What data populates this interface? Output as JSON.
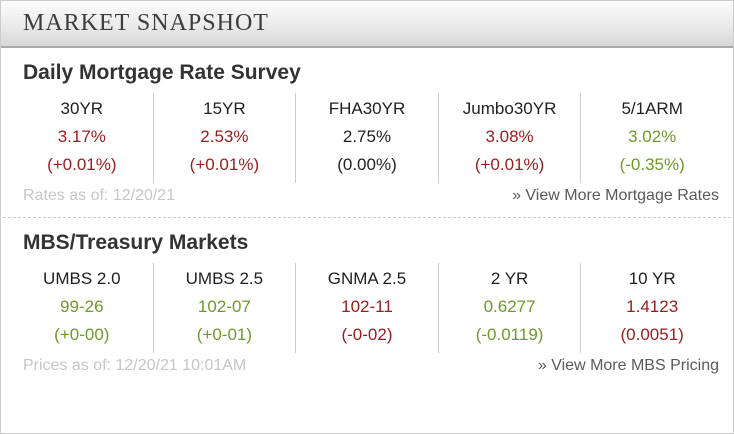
{
  "header": {
    "title": "MARKET SNAPSHOT"
  },
  "colors": {
    "negative": "#9a1c1c",
    "positive": "#70992c",
    "neutral": "#222222"
  },
  "sections": [
    {
      "title": "Daily Mortgage Rate Survey",
      "columns": [
        {
          "label": "30YR",
          "value": "3.17%",
          "change": "(+0.01%)",
          "color": "#9a1c1c"
        },
        {
          "label": "15YR",
          "value": "2.53%",
          "change": "(+0.01%)",
          "color": "#9a1c1c"
        },
        {
          "label": "FHA30YR",
          "value": "2.75%",
          "change": "(0.00%)",
          "color": "#222222"
        },
        {
          "label": "Jumbo30YR",
          "value": "3.08%",
          "change": "(+0.01%)",
          "color": "#9a1c1c"
        },
        {
          "label": "5/1ARM",
          "value": "3.02%",
          "change": "(-0.35%)",
          "color": "#70992c"
        }
      ],
      "footer_note": "Rates as of: 12/20/21",
      "view_more": "» View More Mortgage Rates"
    },
    {
      "title": "MBS/Treasury Markets",
      "columns": [
        {
          "label": "UMBS 2.0",
          "value": "99-26",
          "change": "(+0-00)",
          "color": "#70992c"
        },
        {
          "label": "UMBS 2.5",
          "value": "102-07",
          "change": "(+0-01)",
          "color": "#70992c"
        },
        {
          "label": "GNMA 2.5",
          "value": "102-11",
          "change": "(-0-02)",
          "color": "#9a1c1c"
        },
        {
          "label": "2 YR",
          "value": "0.6277",
          "change": "(-0.0119)",
          "color": "#70992c"
        },
        {
          "label": "10 YR",
          "value": "1.4123",
          "change": "(0.0051)",
          "color": "#9a1c1c"
        }
      ],
      "footer_note": "Prices as of: 12/20/21 10:01AM",
      "view_more": "» View More MBS Pricing"
    }
  ]
}
